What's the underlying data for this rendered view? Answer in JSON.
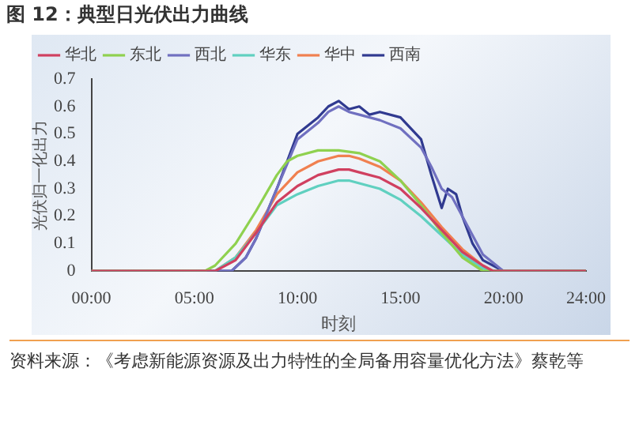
{
  "chart_data": {
    "type": "line",
    "title": "图 12：典型日光伏出力曲线",
    "xlabel": "时刻",
    "ylabel": "光伏归一化出力",
    "annotations": [
      "资料来源：《考虑新能源资源及出力特性的全局备用容量优化方法》蔡乾等"
    ],
    "xlim": [
      0,
      24
    ],
    "xticks": [
      {
        "value": 0,
        "label": "00:00"
      },
      {
        "value": 5,
        "label": "05:00"
      },
      {
        "value": 10,
        "label": "10:00"
      },
      {
        "value": 15,
        "label": "15:00"
      },
      {
        "value": 20,
        "label": "20:00"
      },
      {
        "value": 24,
        "label": "24:00"
      }
    ],
    "ylim": [
      0,
      0.7
    ],
    "yticks": [
      0,
      0.1,
      0.2,
      0.3,
      0.4,
      0.5,
      0.6,
      0.7
    ],
    "grid": false,
    "legend": "top",
    "marker": "none",
    "line_style": "solid",
    "series": [
      {
        "name": "华北",
        "color": "#d04060",
        "x": [
          0,
          6,
          7,
          8,
          9,
          10,
          11,
          12,
          12.5,
          13,
          14,
          15,
          16,
          17,
          18,
          19,
          19.5,
          24
        ],
        "values": [
          0,
          0,
          0.04,
          0.14,
          0.25,
          0.31,
          0.35,
          0.37,
          0.37,
          0.36,
          0.34,
          0.3,
          0.23,
          0.15,
          0.07,
          0.02,
          0,
          0
        ]
      },
      {
        "name": "东北",
        "color": "#8fd14f",
        "x": [
          0,
          5.5,
          6,
          7,
          8,
          9,
          9.5,
          10,
          11,
          12,
          13,
          14,
          15,
          16,
          17,
          18,
          19,
          24
        ],
        "values": [
          0,
          0,
          0.02,
          0.1,
          0.22,
          0.35,
          0.4,
          0.42,
          0.44,
          0.44,
          0.43,
          0.4,
          0.33,
          0.24,
          0.14,
          0.05,
          0,
          0
        ]
      },
      {
        "name": "西北",
        "color": "#7070c0",
        "x": [
          0,
          6.8,
          7.5,
          8,
          9,
          10,
          11,
          11.5,
          12,
          12.5,
          13,
          14,
          15,
          16,
          16.5,
          17,
          17.5,
          18,
          19,
          20,
          24
        ],
        "values": [
          0,
          0,
          0.05,
          0.12,
          0.3,
          0.48,
          0.54,
          0.58,
          0.6,
          0.58,
          0.57,
          0.55,
          0.52,
          0.45,
          0.38,
          0.3,
          0.27,
          0.2,
          0.06,
          0,
          0
        ]
      },
      {
        "name": "华东",
        "color": "#60d0c0",
        "x": [
          0,
          6,
          7,
          8,
          9,
          10,
          11,
          12,
          12.5,
          13,
          14,
          15,
          16,
          17,
          18,
          19,
          19.5,
          24
        ],
        "values": [
          0,
          0,
          0.05,
          0.14,
          0.24,
          0.28,
          0.31,
          0.33,
          0.33,
          0.32,
          0.3,
          0.26,
          0.2,
          0.13,
          0.06,
          0.01,
          0,
          0
        ]
      },
      {
        "name": "华中",
        "color": "#f08050",
        "x": [
          0,
          6,
          7,
          8,
          9,
          10,
          11,
          12,
          12.5,
          13,
          14,
          15,
          16,
          17,
          18,
          19,
          19.5,
          24
        ],
        "values": [
          0,
          0,
          0.05,
          0.15,
          0.28,
          0.36,
          0.4,
          0.42,
          0.42,
          0.41,
          0.38,
          0.33,
          0.25,
          0.16,
          0.08,
          0.02,
          0,
          0
        ]
      },
      {
        "name": "西南",
        "color": "#303a90",
        "x": [
          0,
          6.8,
          7.5,
          8,
          9,
          10,
          11,
          11.5,
          12,
          12.5,
          13,
          13.5,
          14,
          15,
          16,
          16.5,
          17,
          17.3,
          17.7,
          18,
          18.5,
          19,
          20,
          24
        ],
        "values": [
          0,
          0,
          0.05,
          0.12,
          0.3,
          0.5,
          0.56,
          0.6,
          0.62,
          0.59,
          0.6,
          0.57,
          0.58,
          0.56,
          0.48,
          0.35,
          0.23,
          0.3,
          0.28,
          0.2,
          0.1,
          0.04,
          0,
          0
        ]
      }
    ]
  }
}
